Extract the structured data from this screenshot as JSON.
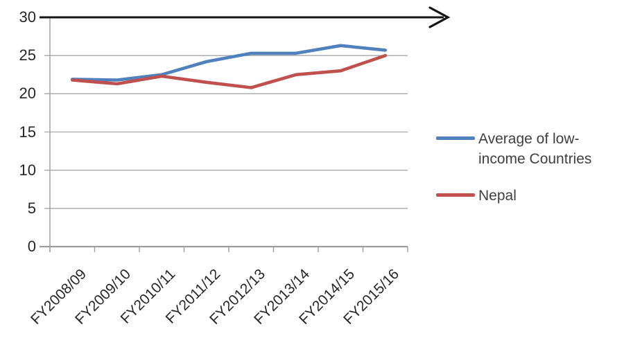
{
  "chart_data": {
    "type": "line",
    "categories": [
      "FY2008/09",
      "FY2009/10",
      "FY2010/11",
      "FY2011/12",
      "FY2012/13",
      "FY2013/14",
      "FY2014/15",
      "FY2015/16"
    ],
    "series": [
      {
        "name": "Average of low-income Countries",
        "color": "#4f81bd",
        "values": [
          21.9,
          21.8,
          22.5,
          24.2,
          25.3,
          25.3,
          26.3,
          25.7
        ]
      },
      {
        "name": "Nepal",
        "color": "#c0504d",
        "values": [
          21.8,
          21.3,
          22.3,
          21.5,
          20.8,
          22.5,
          23.0,
          25.0
        ]
      }
    ],
    "title": "",
    "xlabel": "",
    "ylabel": "",
    "ylim": [
      0,
      30
    ],
    "yticks": [
      0,
      5,
      10,
      15,
      20,
      25,
      30
    ],
    "grid": true,
    "legend_position": "right",
    "axis_arrow": "horizontal-right-at-top",
    "x_label_rotation_deg": -45
  },
  "legend": {
    "items": [
      {
        "label": "Average of low-income Countries",
        "color": "#4f81bd"
      },
      {
        "label": "Nepal",
        "color": "#c0504d"
      }
    ]
  },
  "icons": {
    "axis_arrow": "right-arrow-icon"
  },
  "colors": {
    "series_blue": "#4f81bd",
    "series_red": "#c0504d",
    "gridline": "#a6a6a6",
    "axis": "#9c9c9c",
    "arrow": "#141414",
    "tick_text": "#262626",
    "legend_text": "#3f3f3f",
    "background": "#ffffff"
  }
}
